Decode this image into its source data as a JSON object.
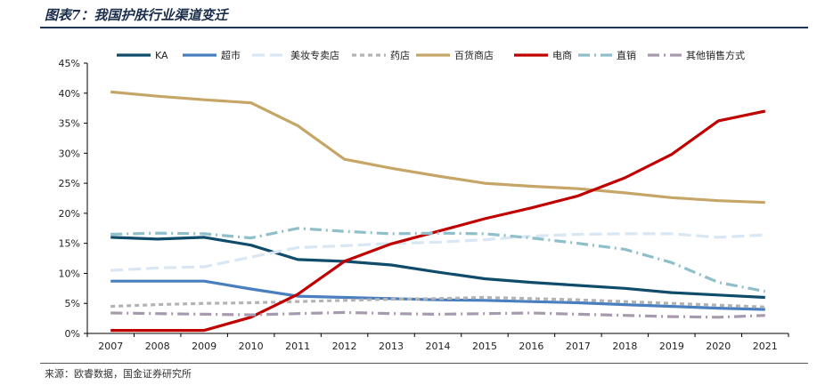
{
  "figure": {
    "title": "图表7：我国护肤行业渠道变迁",
    "source": "来源：欧睿数据，国金证券研究所"
  },
  "chart_data": {
    "type": "line",
    "x": [
      "2007",
      "2008",
      "2009",
      "2010",
      "2011",
      "2012",
      "2013",
      "2014",
      "2015",
      "2016",
      "2017",
      "2018",
      "2019",
      "2020",
      "2021"
    ],
    "ylim": [
      0,
      45
    ],
    "yticks": [
      "0%",
      "5%",
      "10%",
      "15%",
      "20%",
      "25%",
      "30%",
      "35%",
      "40%",
      "45%"
    ],
    "legend_position": "top",
    "grid": false,
    "series": [
      {
        "name": "KA",
        "color": "#0f4c6b",
        "dash": "solid",
        "values": [
          16.0,
          15.7,
          16.0,
          14.7,
          12.3,
          12.0,
          11.4,
          10.2,
          9.1,
          8.5,
          8.0,
          7.5,
          6.8,
          6.4,
          6.0
        ]
      },
      {
        "name": "超市",
        "color": "#4a7fbf",
        "dash": "solid",
        "values": [
          8.7,
          8.7,
          8.7,
          7.4,
          6.2,
          6.0,
          5.8,
          5.6,
          5.5,
          5.3,
          5.1,
          4.8,
          4.5,
          4.2,
          4.0
        ]
      },
      {
        "name": "美妆专卖店",
        "color": "#d9e6f3",
        "dash": "long",
        "values": [
          10.5,
          10.9,
          11.1,
          12.7,
          14.3,
          14.6,
          15.0,
          15.2,
          15.6,
          16.2,
          16.5,
          16.6,
          16.6,
          16.0,
          16.4
        ]
      },
      {
        "name": "药店",
        "color": "#b3b3b3",
        "dash": "short",
        "values": [
          4.5,
          4.8,
          5.0,
          5.1,
          5.3,
          5.5,
          5.7,
          5.8,
          6.0,
          5.8,
          5.6,
          5.3,
          5.0,
          4.7,
          4.4
        ]
      },
      {
        "name": "百货商店",
        "color": "#c6a667",
        "dash": "solid",
        "values": [
          40.2,
          39.5,
          38.9,
          38.4,
          34.6,
          29.0,
          27.5,
          26.2,
          25.0,
          24.5,
          24.1,
          23.4,
          22.6,
          22.1,
          21.8
        ]
      },
      {
        "name": "电商",
        "color": "#c00000",
        "dash": "solid",
        "values": [
          0.5,
          0.5,
          0.5,
          2.7,
          6.5,
          12.0,
          14.9,
          17.0,
          19.1,
          20.9,
          22.9,
          25.9,
          29.8,
          35.4,
          37.0
        ]
      },
      {
        "name": "直销",
        "color": "#8fbfc9",
        "dash": "dashdot",
        "values": [
          16.5,
          16.7,
          16.6,
          15.9,
          17.5,
          17.0,
          16.6,
          16.7,
          16.6,
          15.9,
          15.0,
          14.0,
          11.8,
          8.5,
          7.0
        ]
      },
      {
        "name": "其他销售方式",
        "color": "#a89aae",
        "dash": "dashdot",
        "values": [
          3.4,
          3.3,
          3.2,
          3.1,
          3.3,
          3.5,
          3.3,
          3.2,
          3.3,
          3.4,
          3.2,
          3.0,
          2.8,
          2.7,
          3.0
        ]
      }
    ]
  }
}
